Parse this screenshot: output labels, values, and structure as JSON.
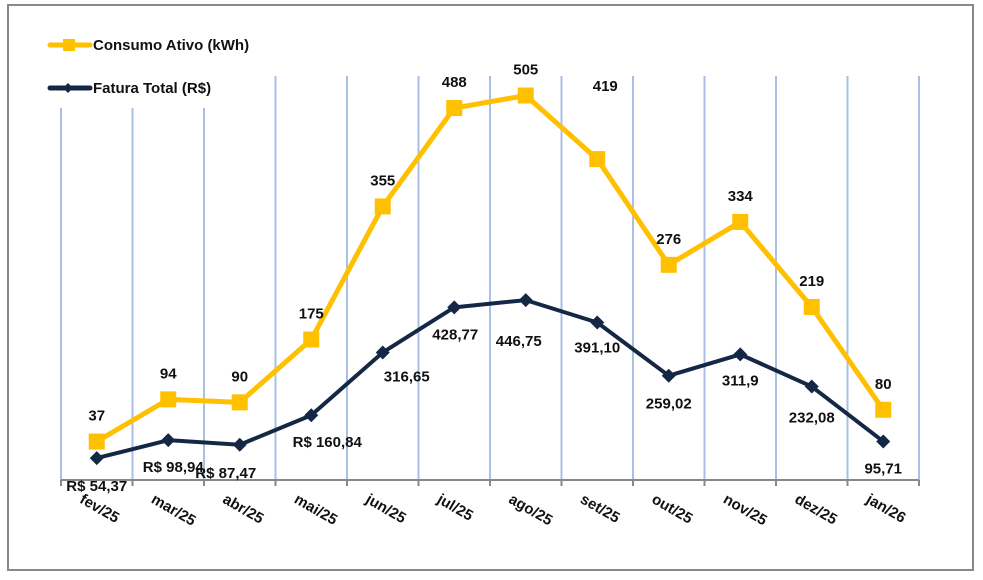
{
  "chart_data": {
    "type": "line",
    "title": "",
    "xlabel": "",
    "ylabel": "",
    "categories": [
      "fev/25",
      "mar/25",
      "abr/25",
      "mai/25",
      "jun/25",
      "jul/25",
      "ago/25",
      "set/25",
      "out/25",
      "nov/25",
      "dez/25",
      "jan/26"
    ],
    "grid": "vertical lines",
    "legend_position": "top-left",
    "series": [
      {
        "name": "Consumo Ativo (kWh)",
        "color": "#FFC000",
        "marker": "square",
        "values": [
          37,
          94,
          90,
          175,
          355,
          488,
          505,
          419,
          276,
          334,
          219,
          80
        ],
        "labels": [
          "37",
          "94",
          "90",
          "175",
          "355",
          "488",
          "505",
          "419",
          "276",
          "334",
          "219",
          "80"
        ],
        "ylim": [
          -15,
          553
        ]
      },
      {
        "name": "Fatura Total (R$)",
        "color": "#142846",
        "marker": "diamond",
        "values": [
          54.37,
          98.94,
          87.47,
          160.84,
          316.65,
          428.77,
          446.75,
          391.1,
          259.02,
          311.9,
          232.08,
          95.71
        ],
        "labels": [
          "R$ 54,37",
          "R$ 98,94",
          "R$ 87,47",
          "R$ 160,84",
          "316,65",
          "428,77",
          "446,75",
          "391,10",
          "259,02",
          "311,9",
          "232,08",
          "95,71"
        ],
        "ylim": [
          0,
          1043
        ]
      }
    ]
  }
}
